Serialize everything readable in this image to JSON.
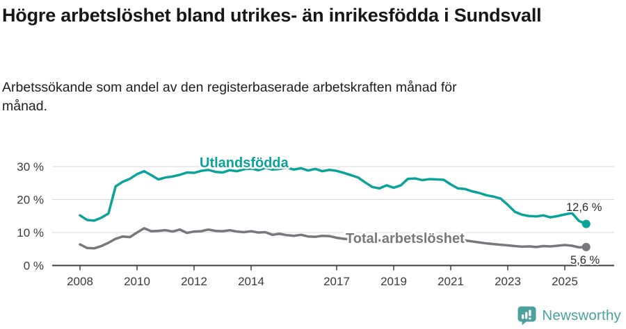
{
  "header": {
    "title": "Högre arbetslöshet bland utrikes- än inrikesfödda i Sundsvall",
    "subtitle": "Arbetssökande som andel av den registerbaserade arbetskraften månad för månad."
  },
  "branding": {
    "wordmark": "Newsworthy",
    "brand_color": "#4aa1a0"
  },
  "chart_data": {
    "type": "line",
    "title": "Högre arbetslöshet bland utrikes- än inrikesfödda i Sundsvall",
    "subtitle": "Arbetssökande som andel av den registerbaserade arbetskraften månad för månad.",
    "xlabel": "",
    "ylabel": "",
    "unit": "%",
    "number_format": "swedish-decimal-comma",
    "grid": "horizontal-only",
    "legend_position": "inline-labels-on-lines",
    "ylim": [
      0,
      33
    ],
    "xlim": [
      2007.8,
      2026.4
    ],
    "axis_color": "#3d3d3d",
    "grid_color": "#d8d8d8",
    "yticks": {
      "values": [
        0,
        10,
        20,
        30
      ],
      "labels": [
        "0 %",
        "10 %",
        "20 %",
        "30 %"
      ]
    },
    "xticks": {
      "values": [
        2008,
        2010,
        2012,
        2014,
        2017,
        2019,
        2021,
        2023,
        2025
      ],
      "labels": [
        "2008",
        "2010",
        "2012",
        "2014",
        "2017",
        "2019",
        "2021",
        "2023",
        "2025"
      ]
    },
    "x": [
      2008.0,
      2008.25,
      2008.5,
      2008.75,
      2009.0,
      2009.25,
      2009.5,
      2009.75,
      2010.0,
      2010.25,
      2010.5,
      2010.75,
      2011.0,
      2011.25,
      2011.5,
      2011.75,
      2012.0,
      2012.25,
      2012.5,
      2012.75,
      2013.0,
      2013.25,
      2013.5,
      2013.75,
      2014.0,
      2014.25,
      2014.5,
      2014.75,
      2015.0,
      2015.25,
      2015.5,
      2015.75,
      2016.0,
      2016.25,
      2016.5,
      2016.75,
      2017.0,
      2017.25,
      2017.5,
      2017.75,
      2018.0,
      2018.25,
      2018.5,
      2018.75,
      2019.0,
      2019.25,
      2019.5,
      2019.75,
      2020.0,
      2020.25,
      2020.5,
      2020.75,
      2021.0,
      2021.25,
      2021.5,
      2021.75,
      2022.0,
      2022.25,
      2022.5,
      2022.75,
      2023.0,
      2023.25,
      2023.5,
      2023.75,
      2024.0,
      2024.25,
      2024.5,
      2024.75,
      2025.0,
      2025.25,
      2025.5,
      2025.75
    ],
    "series": [
      {
        "name": "Utlandsfödda",
        "color": "#0aa29a",
        "end_value": 12.6,
        "end_label": "12,6 %",
        "values": [
          15.2,
          13.8,
          13.6,
          14.5,
          15.8,
          24.0,
          25.4,
          26.3,
          27.7,
          28.6,
          27.4,
          26.1,
          26.7,
          27.0,
          27.5,
          28.2,
          28.1,
          28.7,
          29.0,
          28.4,
          28.2,
          28.9,
          28.6,
          29.2,
          29.4,
          28.9,
          29.6,
          29.1,
          29.3,
          29.7,
          29.1,
          29.5,
          28.8,
          29.3,
          28.6,
          29.0,
          28.7,
          28.1,
          27.4,
          26.7,
          25.2,
          23.8,
          23.4,
          24.3,
          23.6,
          24.3,
          26.3,
          26.4,
          25.9,
          26.2,
          26.1,
          26.0,
          24.6,
          23.4,
          23.2,
          22.5,
          22.0,
          21.3,
          20.9,
          20.3,
          18.4,
          16.3,
          15.4,
          15.0,
          14.9,
          15.2,
          14.6,
          15.0,
          15.5,
          15.9,
          13.5,
          12.6
        ]
      },
      {
        "name": "Total arbetslöshet",
        "color": "#77777c",
        "end_value": 5.6,
        "end_label": "5,6 %",
        "values": [
          6.4,
          5.3,
          5.2,
          5.9,
          6.9,
          8.1,
          8.8,
          8.6,
          10.0,
          11.3,
          10.4,
          10.5,
          10.7,
          10.3,
          10.9,
          9.9,
          10.3,
          10.4,
          10.9,
          10.5,
          10.4,
          10.7,
          10.3,
          10.1,
          10.4,
          10.0,
          10.1,
          9.3,
          9.6,
          9.2,
          9.0,
          9.3,
          8.8,
          8.7,
          9.0,
          8.9,
          8.4,
          8.1,
          7.9,
          7.8,
          7.7,
          7.5,
          7.6,
          7.7,
          7.7,
          7.8,
          7.9,
          8.1,
          8.4,
          9.1,
          8.9,
          8.7,
          8.3,
          8.0,
          7.6,
          7.3,
          7.0,
          6.7,
          6.5,
          6.3,
          6.1,
          5.9,
          5.7,
          5.8,
          5.6,
          5.9,
          5.8,
          6.0,
          6.2,
          6.0,
          5.5,
          5.6
        ]
      }
    ]
  }
}
